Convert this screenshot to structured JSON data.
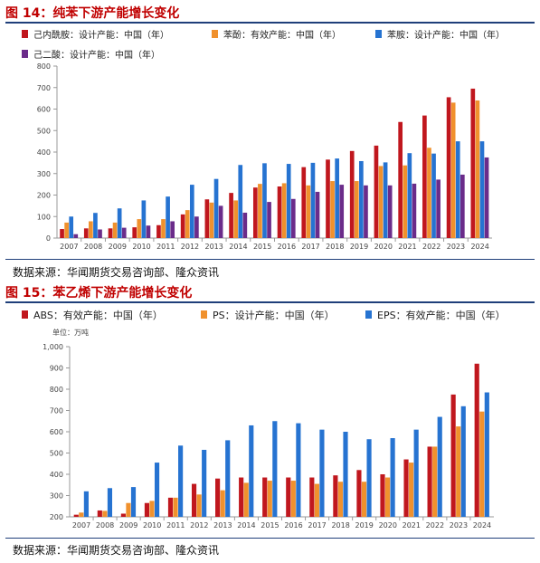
{
  "figures": [
    {
      "title": "图 14：纯苯下游产能增长变化",
      "source": "数据来源：华闻期货交易咨询部、隆众资讯"
    },
    {
      "title": "图 15：苯乙烯下游产能增长变化",
      "source": "数据来源：华闻期货交易咨询部、隆众资讯"
    }
  ],
  "chart_data": [
    {
      "type": "bar",
      "title": "",
      "unit_label": "",
      "categories": [
        "2007",
        "2008",
        "2009",
        "2010",
        "2011",
        "2012",
        "2013",
        "2014",
        "2015",
        "2016",
        "2017",
        "2018",
        "2019",
        "2020",
        "2021",
        "2022",
        "2023",
        "2024"
      ],
      "ylim": [
        0,
        800
      ],
      "yticks": [
        0,
        100,
        200,
        300,
        400,
        500,
        600,
        700,
        800
      ],
      "grid": false,
      "legend_position": "top",
      "series": [
        {
          "name": "己内酰胺：设计产能：中国（年）",
          "color": "#c0171e",
          "values": [
            42,
            45,
            45,
            50,
            60,
            110,
            180,
            210,
            235,
            240,
            330,
            365,
            405,
            430,
            540,
            570,
            655,
            695
          ]
        },
        {
          "name": "苯酚：有效产能：中国（年）",
          "color": "#f0912d",
          "values": [
            72,
            78,
            72,
            88,
            88,
            130,
            165,
            175,
            252,
            255,
            245,
            265,
            265,
            335,
            338,
            420,
            630,
            640
          ]
        },
        {
          "name": "苯胺：设计产能：中国（年）",
          "color": "#2673d1",
          "values": [
            100,
            117,
            138,
            175,
            193,
            248,
            275,
            340,
            348,
            345,
            350,
            370,
            358,
            352,
            395,
            393,
            450,
            450
          ]
        },
        {
          "name": "己二酸：设计产能：中国（年）",
          "color": "#6b2c8a",
          "values": [
            18,
            40,
            48,
            58,
            78,
            100,
            150,
            118,
            168,
            182,
            215,
            248,
            245,
            245,
            253,
            272,
            295,
            375
          ]
        }
      ]
    },
    {
      "type": "bar",
      "title": "",
      "unit_label": "单位：万吨",
      "categories": [
        "2007",
        "2008",
        "2009",
        "2010",
        "2011",
        "2012",
        "2013",
        "2014",
        "2015",
        "2016",
        "2017",
        "2018",
        "2019",
        "2020",
        "2021",
        "2022",
        "2023",
        "2024"
      ],
      "ylim": [
        200,
        1000
      ],
      "yticks": [
        200,
        300,
        400,
        500,
        600,
        700,
        800,
        900,
        1000
      ],
      "ytick_labels": [
        "200",
        "300",
        "400",
        "500",
        "600",
        "700",
        "800",
        "900",
        "1,000"
      ],
      "grid": false,
      "legend_position": "top",
      "series": [
        {
          "name": "ABS：有效产能：中国（年）",
          "color": "#c0171e",
          "values": [
            210,
            230,
            215,
            265,
            290,
            355,
            380,
            385,
            385,
            385,
            385,
            395,
            420,
            400,
            470,
            530,
            775,
            920
          ]
        },
        {
          "name": "PS：设计产能：中国（年）",
          "color": "#f0912d",
          "values": [
            220,
            228,
            265,
            275,
            290,
            305,
            325,
            360,
            370,
            370,
            355,
            365,
            365,
            385,
            455,
            530,
            625,
            695
          ]
        },
        {
          "name": "EPS：有效产能：中国（年）",
          "color": "#2673d1",
          "values": [
            320,
            335,
            340,
            455,
            535,
            515,
            560,
            630,
            650,
            640,
            610,
            600,
            565,
            570,
            610,
            670,
            720,
            785
          ]
        }
      ]
    }
  ]
}
